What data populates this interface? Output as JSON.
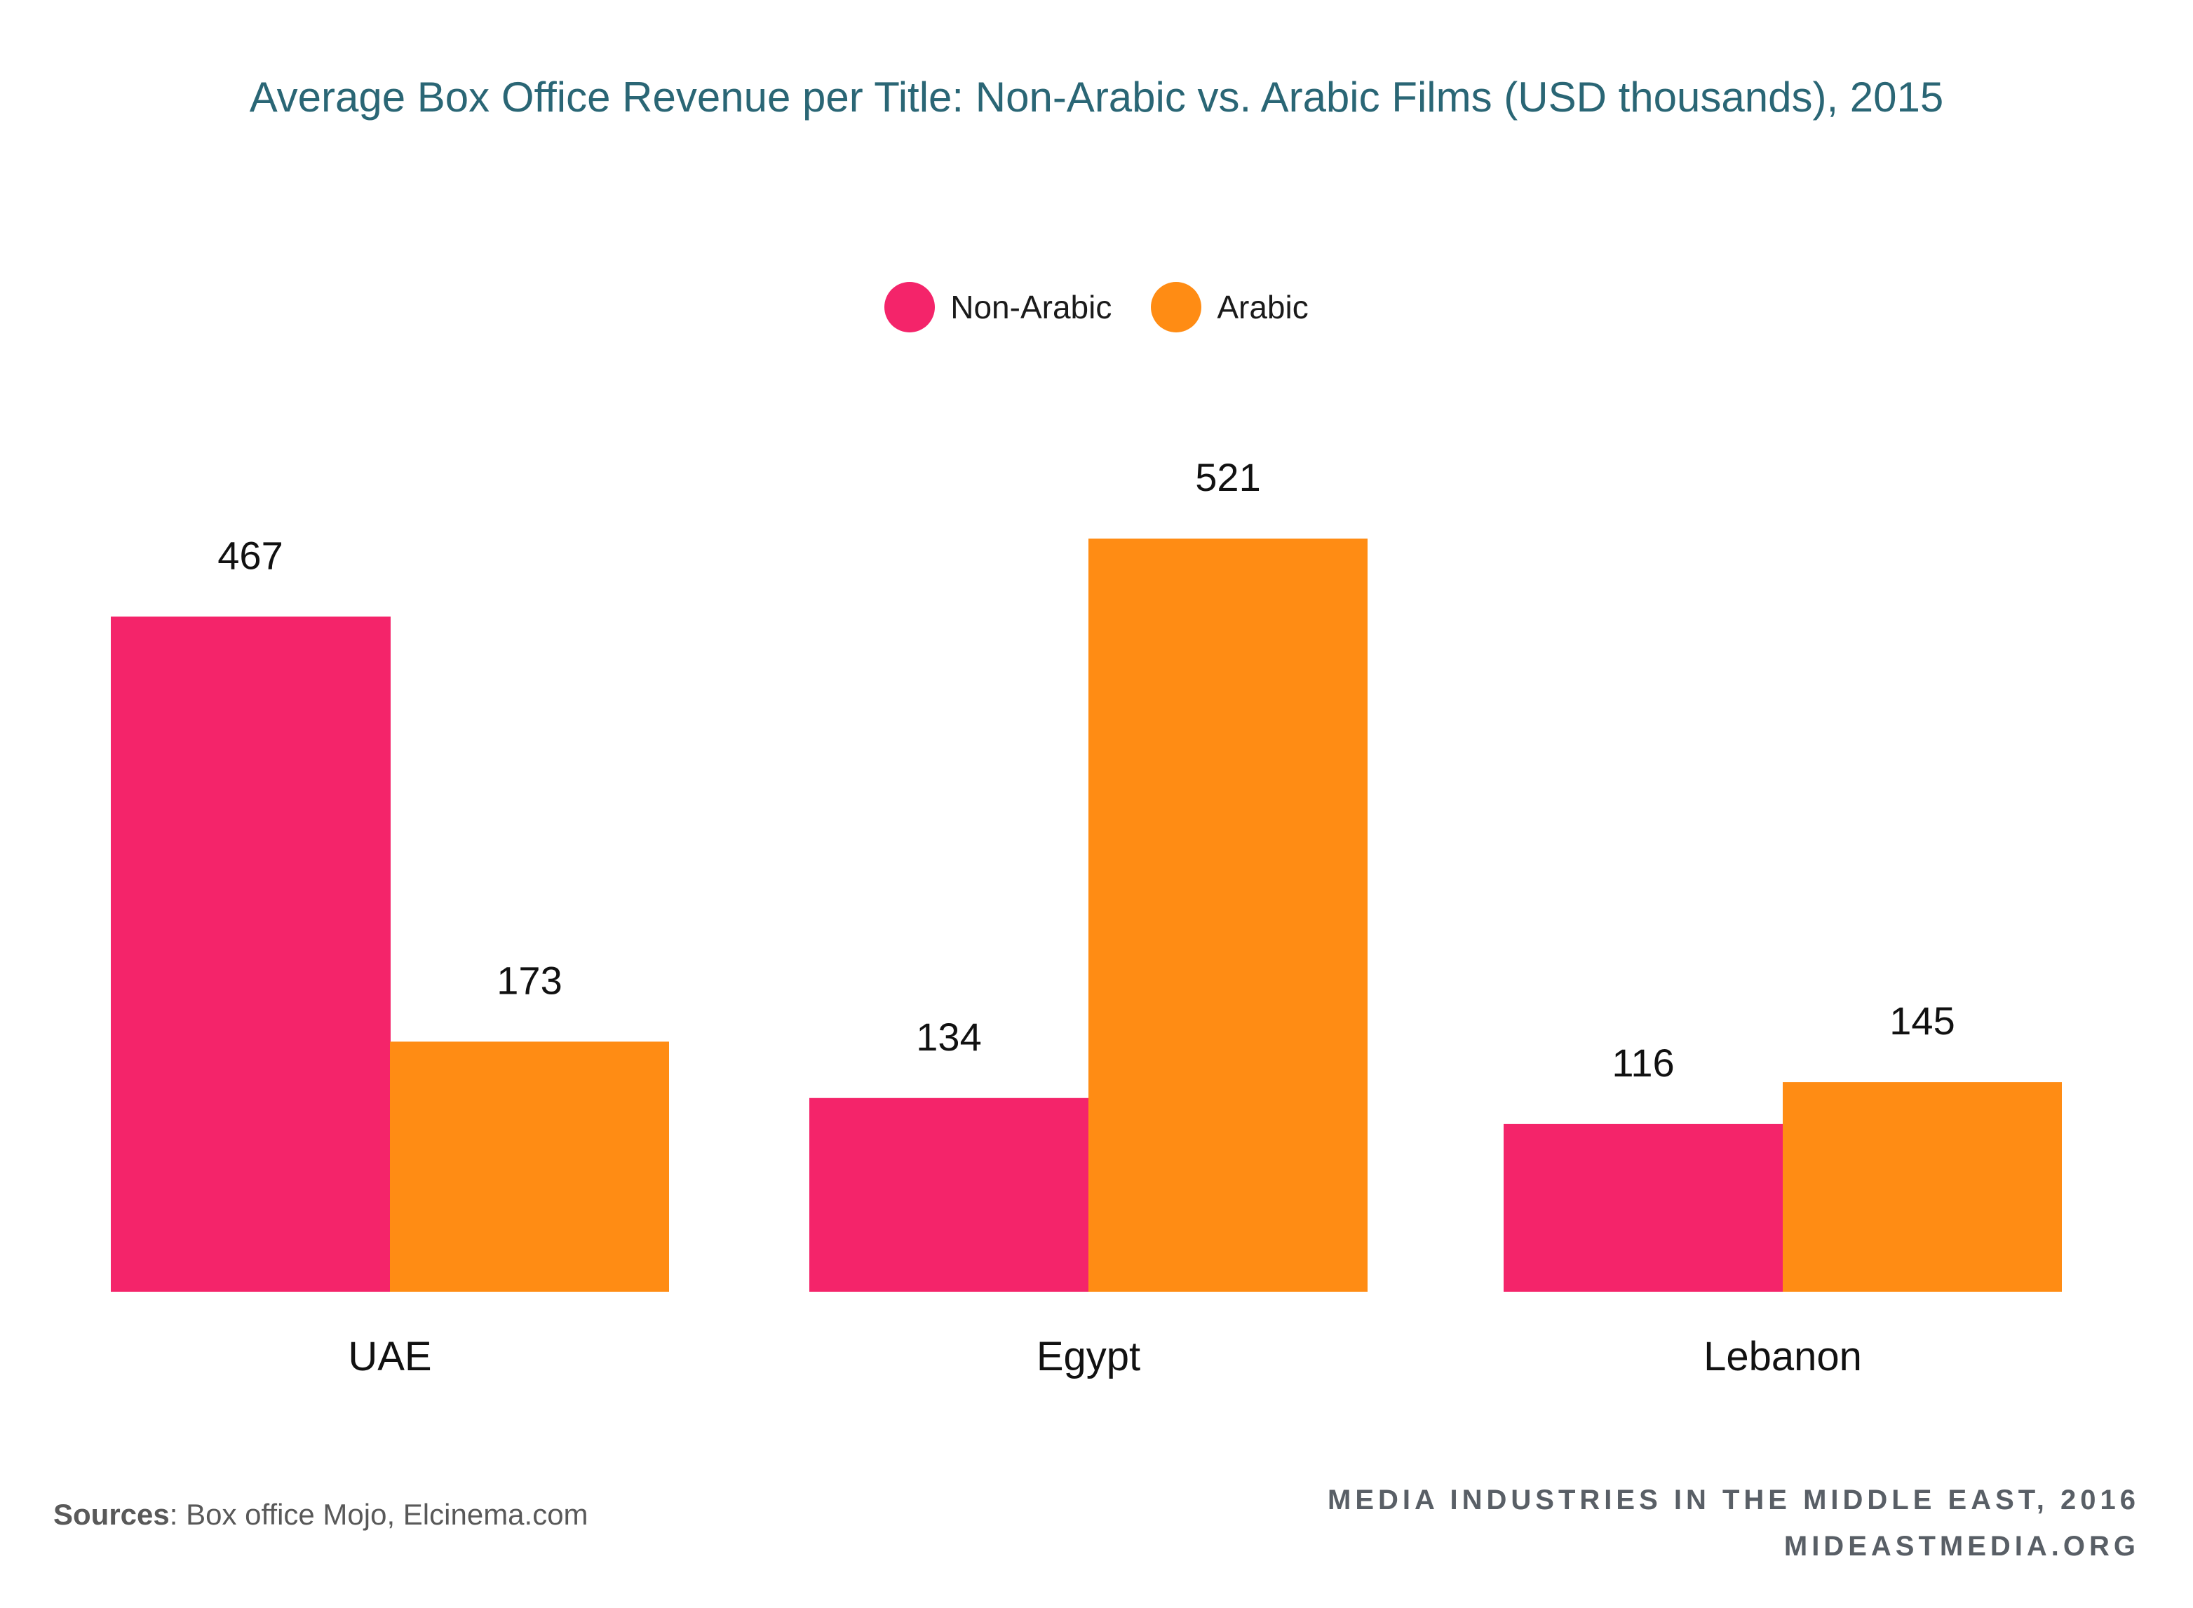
{
  "chart_data": {
    "type": "bar",
    "title": "Average Box Office Revenue per Title: Non-Arabic vs. Arabic Films (USD thousands), 2015",
    "categories": [
      "UAE",
      "Egypt",
      "Lebanon"
    ],
    "series": [
      {
        "name": "Non-Arabic",
        "color": "#f4246a",
        "values": [
          467,
          134,
          116
        ]
      },
      {
        "name": "Arabic",
        "color": "#ff8c14",
        "values": [
          173,
          521,
          145
        ]
      }
    ],
    "xlabel": "",
    "ylabel": "",
    "ylim": [
      0,
      521
    ],
    "grid": false,
    "legend": "top-center"
  },
  "footer": {
    "source_label": "Sources",
    "source_text": ": Box office Mojo, Elcinema.com",
    "line1": "MEDIA INDUSTRIES IN THE MIDDLE EAST, 2016",
    "line2": "MIDEASTMEDIA.ORG"
  }
}
